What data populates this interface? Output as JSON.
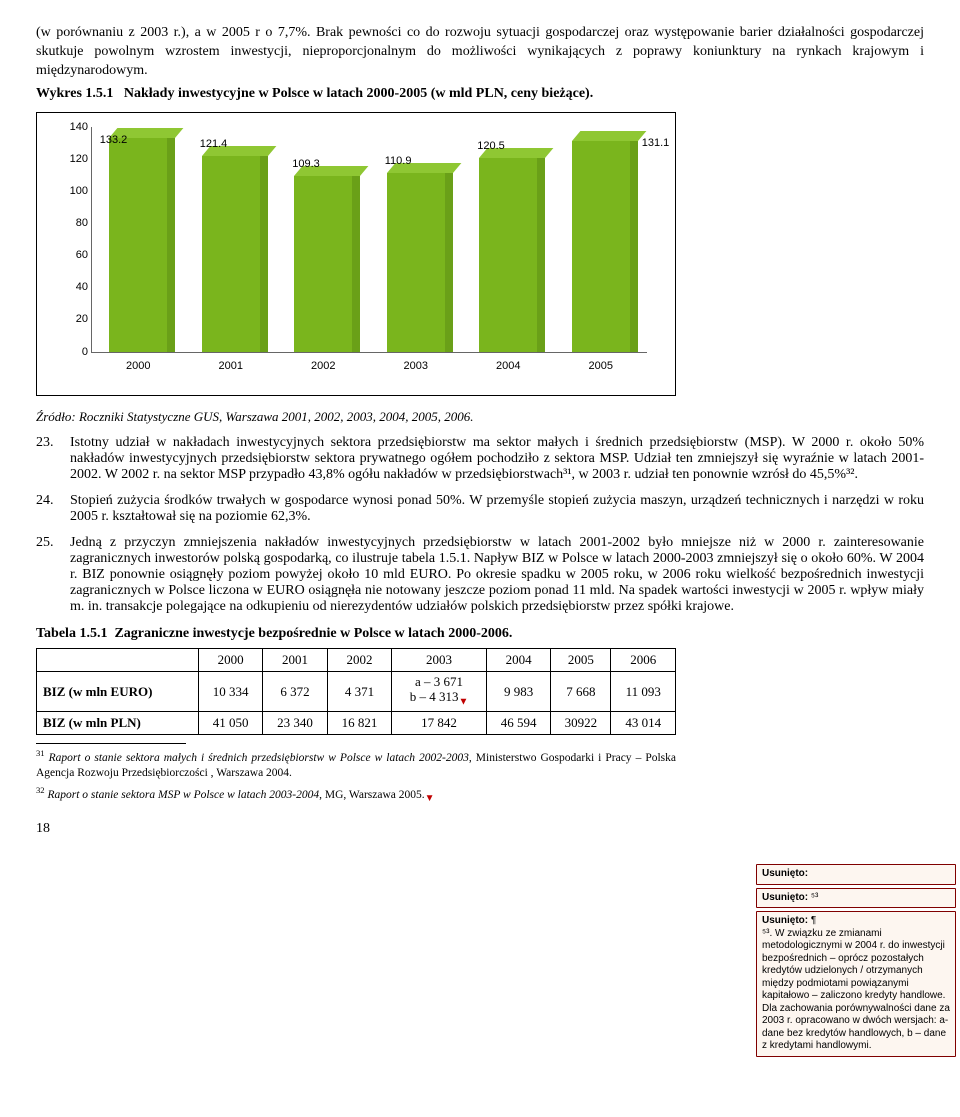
{
  "intro": "(w porównaniu z 2003 r.), a w 2005 r o 7,7%. Brak pewności co do rozwoju sytuacji gospodarczej oraz występowanie barier działalności gospodarczej skutkuje powolnym wzrostem inwestycji, nieproporcjonalnym do możliwości wynikających z poprawy koniunktury na rynkach krajowym i międzynarodowym.",
  "wykres_label": "Wykres 1.5.1",
  "wykres_title": "Nakłady inwestycyjne w Polsce w latach 2000-2005 (w mld PLN, ceny bieżące).",
  "chart": {
    "type": "bar",
    "categories": [
      "2000",
      "2001",
      "2002",
      "2003",
      "2004",
      "2005"
    ],
    "values": [
      133.2,
      121.4,
      109.3,
      110.9,
      120.5,
      131.1
    ],
    "bar_color": "#7ab51d",
    "bar_top_color": "#8fc733",
    "bar_side_color": "#6aa018",
    "ylim": [
      0,
      140
    ],
    "ytick_step": 20,
    "label_fontsize": 11,
    "font_family": "Arial"
  },
  "source": "Źródło: Roczniki Statystyczne GUS, Warszawa 2001, 2002, 2003, 2004, 2005, 2006.",
  "items": [
    {
      "n": "23.",
      "text": "Istotny udział w nakładach inwestycyjnych sektora przedsiębiorstw ma sektor małych i średnich przedsiębiorstw (MSP). W 2000 r. około 50% nakładów inwestycyjnych przedsiębiorstw sektora prywatnego ogółem pochodziło z sektora MSP. Udział ten zmniejszył się wyraźnie w latach 2001-2002. W 2002 r. na sektor MSP przypadło 43,8% ogółu nakładów w przedsiębiorstwach³¹, w 2003 r. udział ten ponownie wzrósł do 45,5%³²."
    },
    {
      "n": "24.",
      "text": "Stopień zużycia środków trwałych w gospodarce wynosi ponad 50%. W przemyśle stopień zużycia maszyn, urządzeń technicznych i narzędzi w roku 2005 r. kształtował się na poziomie 62,3%."
    },
    {
      "n": "25.",
      "text": "Jedną z przyczyn zmniejszenia nakładów inwestycyjnych przedsiębiorstw w latach 2001-2002 było mniejsze niż w 2000 r. zainteresowanie zagranicznych inwestorów polską gospodarką, co ilustruje tabela 1.5.1. Napływ BIZ w Polsce w latach 2000-2003 zmniejszył się o około 60%. W 2004 r. BIZ ponownie osiągnęły poziom powyżej około 10 mld EURO. Po okresie spadku w 2005 roku, w 2006 roku wielkość bezpośrednich inwestycji zagranicznych w Polsce liczona w EURO osiągnęła nie notowany jeszcze poziom ponad 11 mld. Na spadek wartości inwestycji w 2005 r. wpływ miały m. in. transakcje polegające na odkupieniu od nierezydentów udziałów polskich przedsiębiorstw przez spółki krajowe."
    }
  ],
  "table_label": "Tabela 1.5.1",
  "table_title": "Zagraniczne inwestycje bezpośrednie w Polsce w latach 2000-2006.",
  "table": {
    "columns": [
      "",
      "2000",
      "2001",
      "2002",
      "2003",
      "2004",
      "2005",
      "2006"
    ],
    "rows": [
      [
        "BIZ (w mln EURO)",
        "10 334",
        "6 372",
        "4 371",
        "a – 3 671\nb – 4 313",
        "9 983",
        "7 668",
        "11 093"
      ],
      [
        "BIZ (w mln PLN)",
        "41 050",
        "23 340",
        "16 821",
        "17 842",
        "46 594",
        "30922",
        "43 014"
      ]
    ]
  },
  "footnotes": [
    {
      "n": "31",
      "text": "Raport o stanie sektora małych i średnich przedsiębiorstw w Polsce w latach 2002-2003, Ministerstwo Gospodarki i Pracy – Polska Agencja Rozwoju Przedsiębiorczości , Warszawa 2004."
    },
    {
      "n": "32",
      "text": "Raport o stanie sektora MSP w Polsce w latach 2003-2004, MG, Warszawa 2005."
    }
  ],
  "pagenum": "18",
  "comments": [
    {
      "hdr": "Usunięto:",
      "body": ""
    },
    {
      "hdr": "Usunięto:",
      "body": " ⁵³"
    },
    {
      "hdr": "Usunięto:",
      "body": " ¶\n⁵³. W związku ze zmianami metodologicznymi w 2004 r. do inwestycji bezpośrednich – oprócz pozostałych kredytów udzielonych / otrzymanych między podmiotami powiązanymi kapitałowo – zaliczono kredyty handlowe. Dla zachowania porównywalności dane za 2003 r. opracowano w dwóch wersjach: a- dane bez kredytów handlowych, b – dane z kredytami handlowymi."
    }
  ]
}
